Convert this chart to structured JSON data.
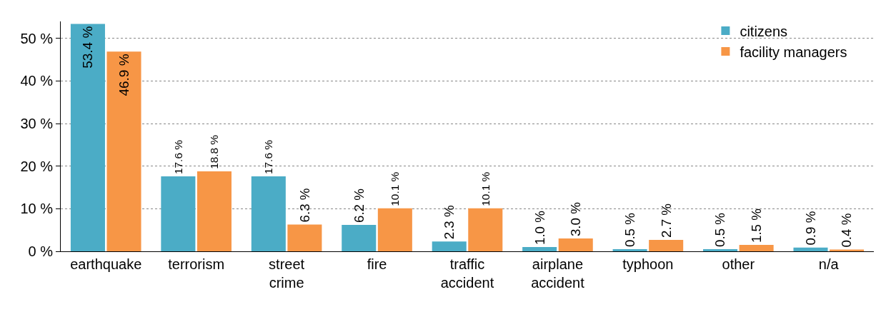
{
  "chart_data": {
    "type": "bar",
    "categories": [
      "earthquake",
      "terrorism",
      "street crime",
      "fire",
      "traffic accident",
      "airplane accident",
      "typhoon",
      "other",
      "n/a"
    ],
    "series": [
      {
        "name": "citizens",
        "color": "#4bacc6",
        "values": [
          53.4,
          17.6,
          17.6,
          6.2,
          2.3,
          1.0,
          0.5,
          0.5,
          0.9
        ],
        "value_labels": [
          "53.4 %",
          "17.6 %",
          "17.6 %",
          "6.2 %",
          "2.3 %",
          "1.0 %",
          "0.5 %",
          "0.5 %",
          "0.9 %"
        ]
      },
      {
        "name": "facility managers",
        "color": "#f79646",
        "values": [
          46.9,
          18.8,
          6.3,
          10.1,
          10.1,
          3.0,
          2.7,
          1.5,
          0.4
        ],
        "value_labels": [
          "46.9 %",
          "18.8 %",
          "6.3 %",
          "10.1 %",
          "10.1 %",
          "3.0 %",
          "2.7 %",
          "1.5 %",
          "0.4 %"
        ]
      }
    ],
    "ylim": [
      0,
      54
    ],
    "yticks": [
      {
        "value": 0,
        "label": "0 %"
      },
      {
        "value": 10,
        "label": "10 %"
      },
      {
        "value": 20,
        "label": "20 %"
      },
      {
        "value": 30,
        "label": "30 %"
      },
      {
        "value": 40,
        "label": "40 %"
      },
      {
        "value": 50,
        "label": "50 %"
      }
    ],
    "grid": "y",
    "legend": "top right"
  }
}
